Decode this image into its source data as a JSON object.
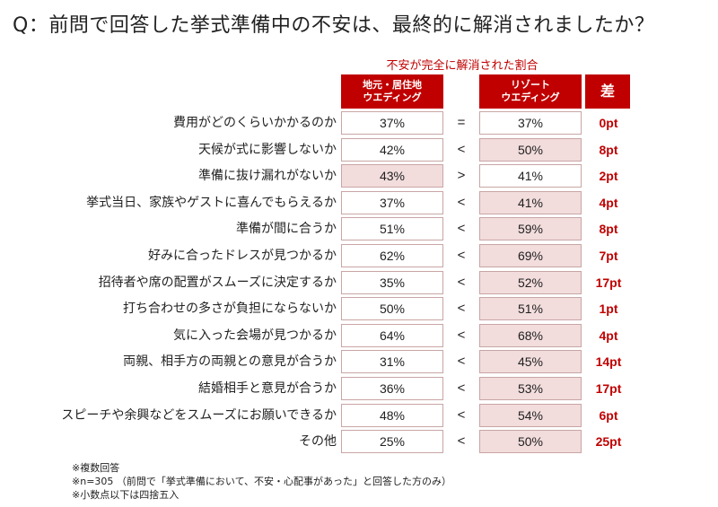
{
  "title": "Q：前問で回答した挙式準備中の不安は、最終的に解消されましたか？",
  "chart_data": {
    "type": "table",
    "subtitle": "不安が完全に解消された割合",
    "columns": {
      "local_line1": "地元・居住地",
      "local_line2": "ウエディング",
      "resort_line1": "リゾート",
      "resort_line2": "ウエディング",
      "diff": "差"
    },
    "highlight_color": "#f2dcdc",
    "accent_color": "#c00000",
    "rows": [
      {
        "label": "費用がどのくらいかかるのか",
        "local": "37%",
        "cmp": "=",
        "resort": "37%",
        "diff": "0pt",
        "highlight": "none"
      },
      {
        "label": "天候が式に影響しないか",
        "local": "42%",
        "cmp": "<",
        "resort": "50%",
        "diff": "8pt",
        "highlight": "resort"
      },
      {
        "label": "準備に抜け漏れがないか",
        "local": "43%",
        "cmp": ">",
        "resort": "41%",
        "diff": "2pt",
        "highlight": "local"
      },
      {
        "label": "挙式当日、家族やゲストに喜んでもらえるか",
        "local": "37%",
        "cmp": "<",
        "resort": "41%",
        "diff": "4pt",
        "highlight": "resort"
      },
      {
        "label": "準備が間に合うか",
        "local": "51%",
        "cmp": "<",
        "resort": "59%",
        "diff": "8pt",
        "highlight": "resort"
      },
      {
        "label": "好みに合ったドレスが見つかるか",
        "local": "62%",
        "cmp": "<",
        "resort": "69%",
        "diff": "7pt",
        "highlight": "resort"
      },
      {
        "label": "招待者や席の配置がスムーズに決定するか",
        "local": "35%",
        "cmp": "<",
        "resort": "52%",
        "diff": "17pt",
        "highlight": "resort"
      },
      {
        "label": "打ち合わせの多さが負担にならないか",
        "local": "50%",
        "cmp": "<",
        "resort": "51%",
        "diff": "1pt",
        "highlight": "resort"
      },
      {
        "label": "気に入った会場が見つかるか",
        "local": "64%",
        "cmp": "<",
        "resort": "68%",
        "diff": "4pt",
        "highlight": "resort"
      },
      {
        "label": "両親、相手方の両親との意見が合うか",
        "local": "31%",
        "cmp": "<",
        "resort": "45%",
        "diff": "14pt",
        "highlight": "resort"
      },
      {
        "label": "結婚相手と意見が合うか",
        "local": "36%",
        "cmp": "<",
        "resort": "53%",
        "diff": "17pt",
        "highlight": "resort"
      },
      {
        "label": "スピーチや余興などをスムーズにお願いできるか",
        "local": "48%",
        "cmp": "<",
        "resort": "54%",
        "diff": "6pt",
        "highlight": "resort"
      },
      {
        "label": "その他",
        "local": "25%",
        "cmp": "<",
        "resort": "50%",
        "diff": "25pt",
        "highlight": "resort"
      }
    ]
  },
  "notes": [
    "※複数回答",
    "※n=305 （前問で「挙式準備において、不安・心配事があった」と回答した方のみ）",
    "※小数点以下は四捨五入"
  ]
}
